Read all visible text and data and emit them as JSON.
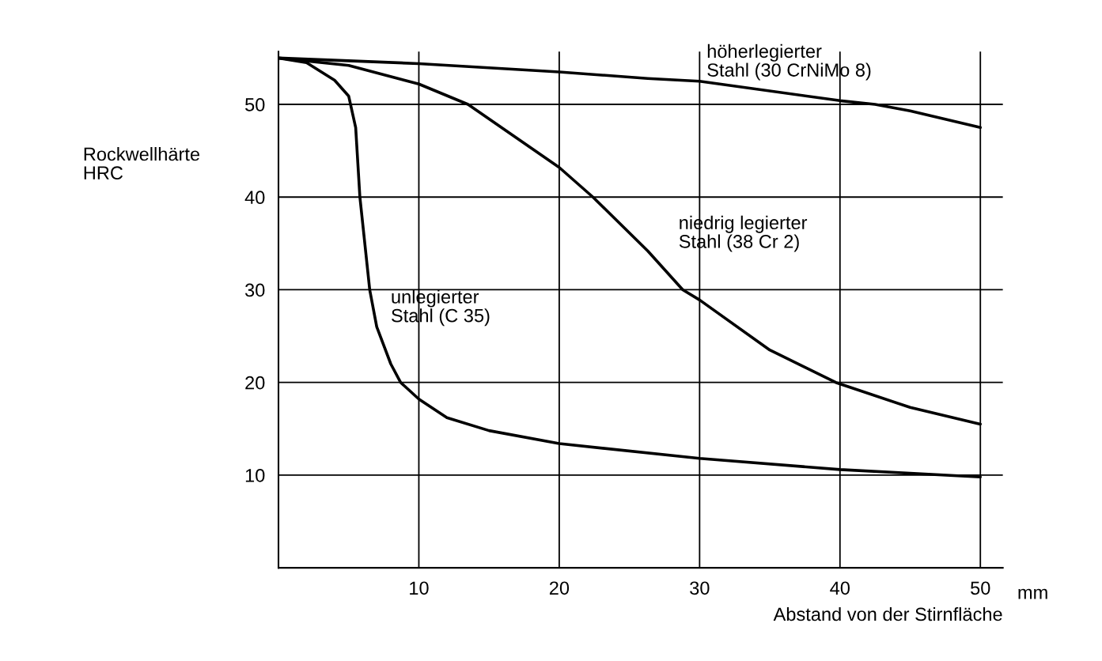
{
  "chart_data": {
    "type": "line",
    "xlabel": "Abstand von der Stirnfläche",
    "ylabel": "Rockwellhärte\nHRC",
    "annotations": [
      "mm"
    ],
    "series": [
      {
        "name": "unlegierter\nStahl (C 35)",
        "color": "#000000",
        "x": [
          0,
          2,
          4,
          5,
          5.5,
          5.8,
          6.5,
          7,
          8,
          8.7,
          10,
          12,
          15,
          20,
          30,
          40,
          50
        ],
        "values": [
          55,
          54.5,
          52.6,
          50.9,
          47.5,
          40,
          30,
          26,
          22,
          20,
          18.2,
          16.2,
          14.8,
          13.4,
          11.8,
          10.6,
          9.8
        ]
      },
      {
        "name": "niedrig legierter\nStahl (38 Cr 2)",
        "color": "#000000",
        "x": [
          0,
          5,
          10,
          13.5,
          20,
          22.4,
          26.3,
          28.8,
          30,
          35,
          39.7,
          45,
          50
        ],
        "values": [
          55,
          54.2,
          52.2,
          50,
          43.2,
          40,
          34.2,
          30,
          28.9,
          23.5,
          20,
          17.3,
          15.5
        ]
      },
      {
        "name": "höherlegierter\nStahl (30 CrNiMo 8)",
        "color": "#000000",
        "x": [
          0,
          10,
          20,
          26.3,
          30,
          40,
          42.5,
          45,
          50
        ],
        "values": [
          55,
          54.4,
          53.5,
          52.8,
          52.5,
          50.4,
          50,
          49.3,
          47.5
        ]
      }
    ],
    "xlim": [
      0,
      51.6
    ],
    "ylim": [
      0,
      55.7
    ],
    "xticks": [
      10,
      20,
      30,
      40,
      50
    ],
    "yticks": [
      10,
      20,
      30,
      40,
      50
    ],
    "grid": true,
    "legend": false,
    "marker": "none",
    "line_style": "solid"
  }
}
